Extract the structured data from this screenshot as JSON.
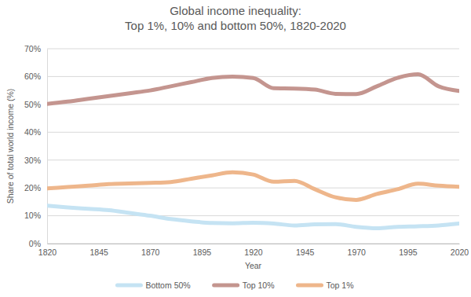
{
  "chart_data": {
    "type": "line",
    "title": [
      "Global income inequality:",
      "Top 1%, 10% and bottom 50%, 1820-2020"
    ],
    "x_label": "Year",
    "y_label": "Share of total world income (%)",
    "x": [
      1820,
      1830,
      1840,
      1850,
      1860,
      1870,
      1880,
      1890,
      1900,
      1910,
      1920,
      1930,
      1940,
      1950,
      1960,
      1970,
      1980,
      1990,
      2000,
      2010,
      2020
    ],
    "series": [
      {
        "name": "Bottom 50%",
        "color": "#c5e3f3",
        "values": [
          13.6,
          13.0,
          12.5,
          12.0,
          11.0,
          10.0,
          8.8,
          8.0,
          7.4,
          7.3,
          7.5,
          7.2,
          6.5,
          6.9,
          7.0,
          6.0,
          5.5,
          6.0,
          6.2,
          6.5,
          7.2
        ]
      },
      {
        "name": "Top 10%",
        "color": "#c4958f",
        "values": [
          50.2,
          51.0,
          52.0,
          53.0,
          54.0,
          55.0,
          56.5,
          58.0,
          59.5,
          60.0,
          59.5,
          55.8,
          55.7,
          55.3,
          53.8,
          53.7,
          56.5,
          59.5,
          60.8,
          56.5,
          54.8
        ]
      },
      {
        "name": "Top 1%",
        "color": "#eeb68b",
        "values": [
          19.8,
          20.3,
          20.8,
          21.4,
          21.6,
          21.8,
          22.1,
          23.3,
          24.5,
          25.6,
          24.8,
          22.2,
          22.5,
          19.5,
          16.6,
          15.7,
          17.8,
          19.5,
          21.5,
          20.8,
          20.4
        ]
      }
    ],
    "xlim": [
      1820,
      2020
    ],
    "xticks": [
      1820,
      1845,
      1870,
      1895,
      1920,
      1945,
      1970,
      1995,
      2020
    ],
    "ylim": [
      0,
      70
    ],
    "yticks": [
      {
        "value": 0,
        "label": "0%"
      },
      {
        "value": 10,
        "label": "10%"
      },
      {
        "value": 20,
        "label": "20%"
      },
      {
        "value": 30,
        "label": "30%"
      },
      {
        "value": 40,
        "label": "40%"
      },
      {
        "value": 50,
        "label": "50%"
      },
      {
        "value": 60,
        "label": "60%"
      },
      {
        "value": 70,
        "label": "70%"
      }
    ],
    "grid": true,
    "legend": "bottom"
  }
}
